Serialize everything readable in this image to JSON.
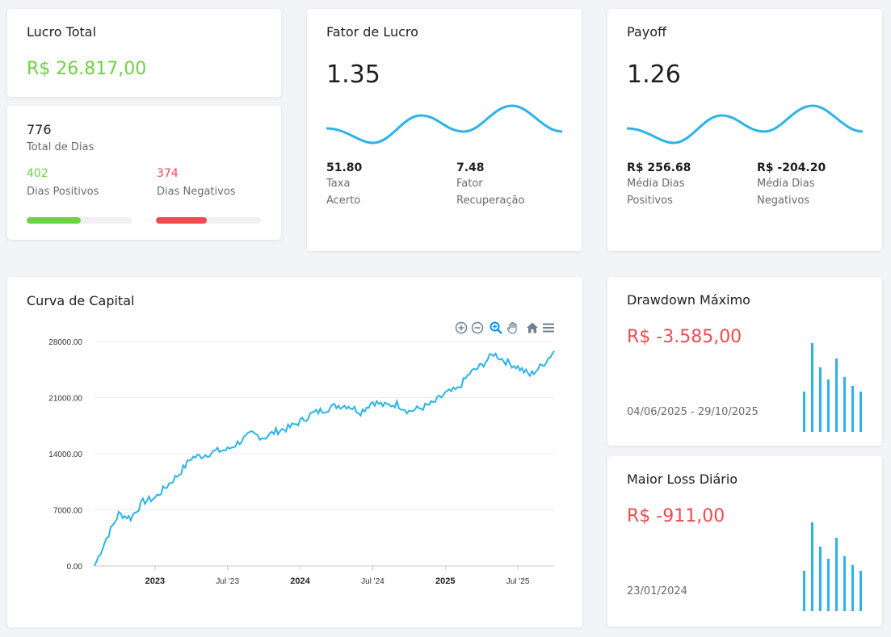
{
  "lucro_total": {
    "title": "Lucro Total",
    "value": "R$ 26.817,00"
  },
  "dias": {
    "total": "776",
    "total_label": "Total de Dias",
    "positivos": "402",
    "positivos_label": "Dias Positivos",
    "negativos": "374",
    "negativos_label": "Dias Negativos",
    "positivos_fraction": 0.518,
    "negativos_fraction": 0.482
  },
  "fator_lucro": {
    "title": "Fator de Lucro",
    "value": "1.35",
    "m1_value": "51.80",
    "m1_label_1": "Taxa",
    "m1_label_2": "Acerto",
    "m2_value": "7.48",
    "m2_label_1": "Fator",
    "m2_label_2": "Recuperação"
  },
  "payoff": {
    "title": "Payoff",
    "value": "1.26",
    "m1_value": "R$ 256.68",
    "m1_label_1": "Média Dias",
    "m1_label_2": "Positivos",
    "m2_value": "R$ -204.20",
    "m2_label_1": "Média Dias",
    "m2_label_2": "Negativos"
  },
  "curva": {
    "title": "Curva de Capital"
  },
  "drawdown": {
    "title": "Drawdown Máximo",
    "value": "R$ -3.585,00",
    "period": "04/06/2025 - 29/10/2025"
  },
  "maior_loss": {
    "title": "Maior Loss Diário",
    "value": "R$ -911,00",
    "date": "23/01/2024"
  },
  "colors": {
    "accent": "#2bb4e8",
    "green": "#6ed145",
    "red": "#ef4a4f"
  },
  "chart_data": {
    "type": "line",
    "title": "Curva de Capital",
    "xlabel": "",
    "ylabel": "",
    "ylim": [
      0,
      28000
    ],
    "yticks": [
      "28000.00",
      "21000.00",
      "14000.00",
      "7000.00",
      "0.00"
    ],
    "xticks": [
      {
        "label": "2023",
        "bold": true
      },
      {
        "label": "Jul '23",
        "bold": false
      },
      {
        "label": "2024",
        "bold": true
      },
      {
        "label": "Jul '24",
        "bold": false
      },
      {
        "label": "2025",
        "bold": true
      },
      {
        "label": "Jul '25",
        "bold": false
      }
    ],
    "x": [
      "2022-08",
      "2022-09",
      "2022-10",
      "2022-11",
      "2022-12",
      "2023-01",
      "2023-02",
      "2023-03",
      "2023-04",
      "2023-05",
      "2023-06",
      "2023-07",
      "2023-08",
      "2023-09",
      "2023-10",
      "2023-11",
      "2023-12",
      "2024-01",
      "2024-02",
      "2024-03",
      "2024-04",
      "2024-05",
      "2024-06",
      "2024-07",
      "2024-08",
      "2024-09",
      "2024-10",
      "2024-11",
      "2024-12",
      "2025-01",
      "2025-02",
      "2025-03",
      "2025-04",
      "2025-05",
      "2025-06",
      "2025-07",
      "2025-08",
      "2025-09",
      "2025-10"
    ],
    "series": [
      {
        "name": "Capital",
        "values": [
          0,
          3500,
          6500,
          6000,
          8000,
          8500,
          10000,
          11500,
          13500,
          13800,
          14300,
          14500,
          15500,
          16500,
          16000,
          16800,
          17200,
          18000,
          19000,
          19500,
          20000,
          20000,
          19200,
          20500,
          20000,
          20200,
          19300,
          19700,
          20300,
          21500,
          22000,
          24000,
          25000,
          26500,
          25500,
          24800,
          23800,
          25000,
          26817
        ]
      }
    ]
  }
}
